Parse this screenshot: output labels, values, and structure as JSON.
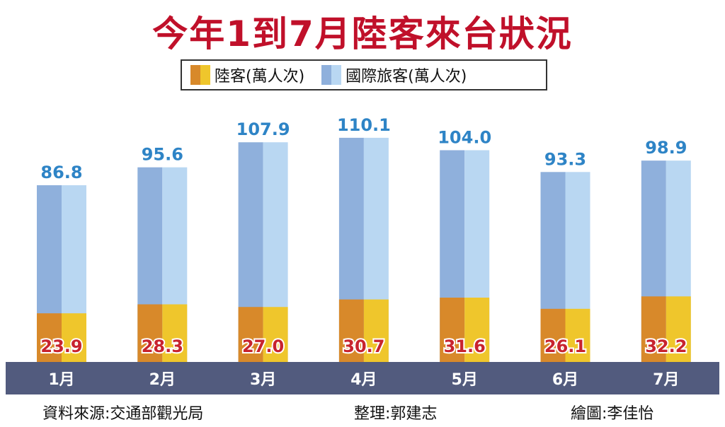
{
  "title": "今年1到7月陸客來台狀況",
  "legend": {
    "mainland": "陸客(萬人次)",
    "international": "國際旅客(萬人次)"
  },
  "colors": {
    "title": "#c0102a",
    "intl_dark": "#8fb0dc",
    "intl_light": "#b9d7f2",
    "mainland_dark": "#d8892a",
    "mainland_light": "#efc62c",
    "axis_band": "#525b7e",
    "intl_label": "#2e84c6",
    "mainland_label": "#c8232e"
  },
  "chart_data": {
    "type": "bar",
    "categories": [
      "1月",
      "2月",
      "3月",
      "4月",
      "5月",
      "6月",
      "7月"
    ],
    "series": [
      {
        "name": "陸客(萬人次)",
        "values": [
          23.9,
          28.3,
          27.0,
          30.7,
          31.6,
          26.1,
          32.2
        ],
        "labels": [
          "23.9",
          "28.3",
          "27.0",
          "30.7",
          "31.6",
          "26.1",
          "32.2"
        ]
      },
      {
        "name": "國際旅客(萬人次)",
        "values": [
          86.8,
          95.6,
          107.9,
          110.1,
          104.0,
          93.3,
          98.9
        ],
        "labels": [
          "86.8",
          "95.6",
          "107.9",
          "110.1",
          "104.0",
          "93.3",
          "98.9"
        ]
      }
    ]
  },
  "footer": {
    "source": "資料來源:交通部觀光局",
    "editor": "整理:郭建志",
    "artist": "繪圖:李佳怡"
  }
}
